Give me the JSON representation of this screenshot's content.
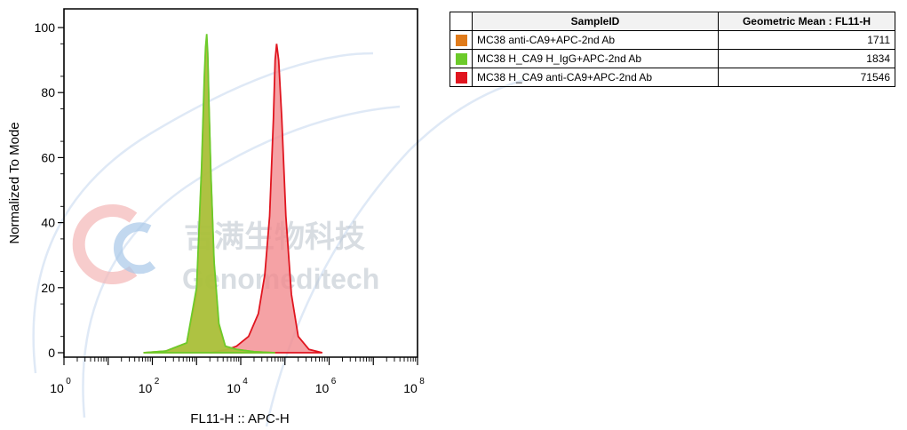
{
  "watermark": {
    "text_cn": "吉满生物科技",
    "text_en": "Genomeditech"
  },
  "chart_data": {
    "type": "area",
    "xlabel": "FL11-H :: APC-H",
    "ylabel": "Normalized To Mode",
    "xscale": "log",
    "xlim": [
      1,
      100000000
    ],
    "ylim": [
      0,
      100
    ],
    "x_ticks": [
      {
        "base": "10",
        "exp": "0"
      },
      {
        "base": "10",
        "exp": "2"
      },
      {
        "base": "10",
        "exp": "4"
      },
      {
        "base": "10",
        "exp": "6"
      },
      {
        "base": "10",
        "exp": "8"
      }
    ],
    "y_ticks": [
      "0",
      "20",
      "40",
      "60",
      "80",
      "100"
    ],
    "series": [
      {
        "name": "MC38 anti-CA9+APC-2nd Ab",
        "color": "#e07b1a",
        "fill": "#b8962e",
        "x": [
          63,
          200,
          600,
          1000,
          1300,
          1500,
          1600,
          1700,
          1800,
          1900,
          2100,
          2500,
          3200,
          4500,
          8000,
          20000,
          60000
        ],
        "y": [
          0,
          0.5,
          3,
          18,
          55,
          82,
          92,
          95,
          90,
          76,
          55,
          27,
          8,
          2,
          1,
          0.3,
          0
        ]
      },
      {
        "name": "MC38 H_CA9 H_IgG+APC-2nd Ab",
        "color": "#6ccb2a",
        "fill": "#a7c83d",
        "x": [
          63,
          200,
          600,
          1000,
          1300,
          1500,
          1600,
          1700,
          1800,
          1900,
          2100,
          2500,
          3200,
          4500,
          8000,
          20000,
          60000
        ],
        "y": [
          0,
          0.5,
          3,
          20,
          57,
          85,
          94,
          98,
          92,
          78,
          56,
          28,
          9,
          2,
          1,
          0.3,
          0
        ]
      },
      {
        "name": "MC38 H_CA9 anti-CA9+APC-2nd Ab",
        "color": "#e0151f",
        "fill": "#f28b8e",
        "x": [
          2000,
          5000,
          8000,
          15000,
          25000,
          35000,
          45000,
          55000,
          60000,
          65000,
          72000,
          85000,
          105000,
          140000,
          200000,
          350000,
          700000
        ],
        "y": [
          0,
          1,
          2,
          5,
          12,
          24,
          42,
          72,
          90,
          95,
          90,
          72,
          42,
          18,
          5,
          1,
          0
        ]
      }
    ],
    "table": {
      "headers": [
        "SampleID",
        "Geometric Mean : FL11-H"
      ],
      "rows": [
        {
          "sample": "MC38 anti-CA9+APC-2nd Ab",
          "value": "1711",
          "color": "#e07b1a"
        },
        {
          "sample": "MC38 H_CA9 H_IgG+APC-2nd Ab",
          "value": "1834",
          "color": "#6ccb2a"
        },
        {
          "sample": "MC38 H_CA9 anti-CA9+APC-2nd Ab",
          "value": "71546",
          "color": "#e0151f"
        }
      ]
    }
  }
}
